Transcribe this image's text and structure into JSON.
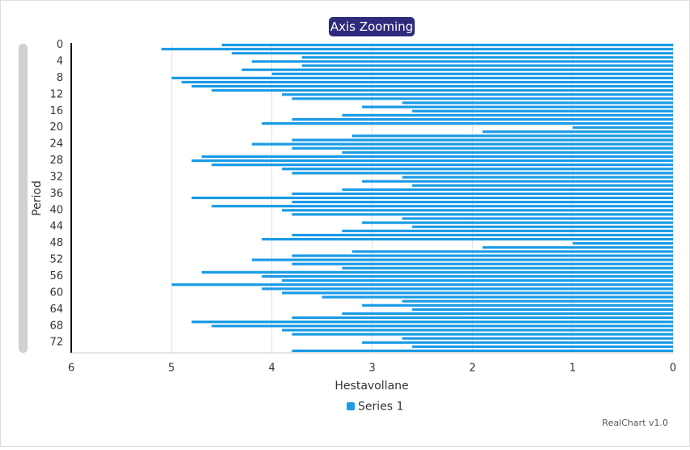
{
  "chart_data": {
    "type": "hbar",
    "title": "Axis Zooming",
    "x_label": "Hestavollane",
    "y_label": "Period",
    "credit": "RealChart v1.0",
    "categories": [
      "0",
      null,
      null,
      null,
      "4",
      null,
      null,
      null,
      "8",
      null,
      null,
      null,
      "12",
      null,
      null,
      null,
      "16",
      null,
      null,
      null,
      "20",
      null,
      null,
      null,
      "24",
      null,
      null,
      null,
      "28",
      null,
      null,
      null,
      "32",
      null,
      null,
      null,
      "36",
      null,
      null,
      null,
      "40",
      null,
      null,
      null,
      "44",
      null,
      null,
      null,
      "48",
      null,
      null,
      null,
      "52",
      null,
      null,
      null,
      "56",
      null,
      null,
      null,
      "60",
      null,
      null,
      null,
      "64",
      null,
      null,
      null,
      "68",
      null,
      null,
      null,
      "72",
      null,
      null
    ],
    "series": [
      {
        "name": "Series 1",
        "color": "#1a9be6",
        "values": [
          4.5,
          5.1,
          4.4,
          3.7,
          4.2,
          3.7,
          4.3,
          4.0,
          5.0,
          4.9,
          4.8,
          4.6,
          3.9,
          3.8,
          2.7,
          3.1,
          2.6,
          3.3,
          3.8,
          4.1,
          1.0,
          1.9,
          3.2,
          3.8,
          4.2,
          3.8,
          3.3,
          4.7,
          4.8,
          4.6,
          3.9,
          3.8,
          2.7,
          3.1,
          2.6,
          3.3,
          3.8,
          4.8,
          3.8,
          4.6,
          3.9,
          3.8,
          2.7,
          3.1,
          2.6,
          3.3,
          3.8,
          4.1,
          1.0,
          1.9,
          3.2,
          3.8,
          4.2,
          3.8,
          3.3,
          4.7,
          4.1,
          3.9,
          5.0,
          4.1,
          3.9,
          3.5,
          2.7,
          3.1,
          2.6,
          3.3,
          3.8,
          4.8,
          4.6,
          3.9,
          3.8,
          2.7,
          3.1,
          2.6,
          3.8
        ]
      }
    ],
    "xlim": [
      6,
      0
    ],
    "xticks": [
      6,
      5,
      4,
      3,
      2,
      1,
      0
    ],
    "grid": true,
    "legend": "bottom"
  }
}
